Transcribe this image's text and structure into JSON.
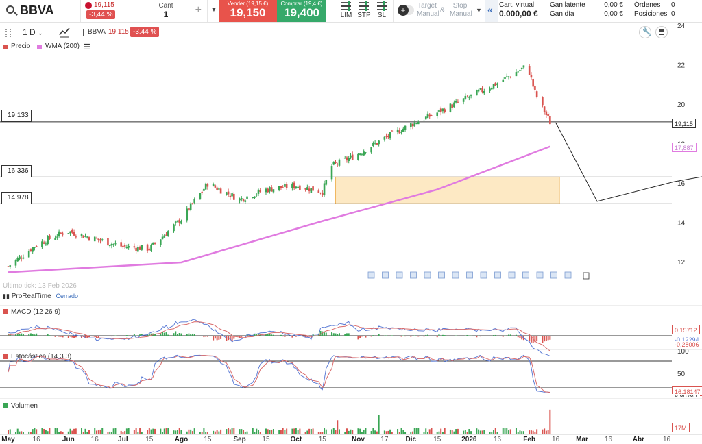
{
  "toolbar": {
    "symbol": "BBVA",
    "price": "19,115",
    "change": "-3,44 %",
    "qty_label": "Cant",
    "qty_value": "1",
    "sell_label": "Vender (19,15 €)",
    "sell_price": "19,150",
    "buy_label": "Comprar (19,4 €)",
    "buy_price": "19,400",
    "order_types": [
      "LIM",
      "STP",
      "SL"
    ],
    "target_label": "Target",
    "target_sub": "Manual",
    "amp": "&",
    "stop_label": "Stop",
    "stop_sub": "Manual",
    "collapse": "«"
  },
  "account": {
    "virtual_label": "Cart. virtual",
    "virtual_value": "0.000,00 €",
    "unrealized_label": "Gan latente",
    "unrealized_value": "0,00 €",
    "daily_label": "Gan día",
    "daily_value": "0,00 €",
    "orders_label": "Órdenes",
    "orders_value": "0",
    "positions_label": "Posiciones",
    "positions_value": "0"
  },
  "chart_header": {
    "timeframe": "1 D",
    "symbol": "BBVA",
    "price": "19,115",
    "change": "-3.44 %"
  },
  "legend": {
    "price_label": "Precio",
    "wma_label": "WMA (200)"
  },
  "levels": {
    "l1": "19.133",
    "l2": "16.336",
    "l3": "14.978"
  },
  "axis_tags": {
    "last_price": "19,115",
    "wma_value": "17,887",
    "macd_value1": "0,15712",
    "macd_value2": "-0,12294",
    "macd_value3": "-0,28006",
    "stoch_value1": "16,18147",
    "stoch_value2": "8,80780",
    "volume_value": "17M"
  },
  "status": {
    "last_tick": "Último tick: 13 Feb 2026",
    "source": "ProRealTime",
    "state": "Cerrado"
  },
  "panels": {
    "macd_label": "MACD (12 26 9)",
    "stoch_label": "Estocástico (14 3 3)",
    "volume_label": "Volumen",
    "stoch_levels": [
      "100",
      "50",
      "0"
    ]
  },
  "price_axis": {
    "ticks": [
      "24",
      "22",
      "20",
      "18",
      "16",
      "14",
      "12"
    ]
  },
  "time_axis": {
    "ticks": [
      "May",
      "16",
      "Jun",
      "16",
      "Jul",
      "15",
      "Ago",
      "15",
      "Sep",
      "15",
      "Oct",
      "15",
      "Nov",
      "17",
      "Dic",
      "15",
      "2026",
      "16",
      "Feb",
      "16",
      "Mar",
      "16",
      "Abr",
      "16"
    ]
  },
  "colors": {
    "up": "#3aa655",
    "down": "#d9534f",
    "wma": "#e07be0",
    "macd_line": "#5b7bd5",
    "signal_line": "#d96b6b",
    "zone_fill": "#fde9c4",
    "zone_border": "#f0b860"
  },
  "chart_data": {
    "type": "candlestick",
    "title": "BBVA",
    "timeframe": "1 D",
    "ylim": [
      11,
      24
    ],
    "x_range": [
      "2025-05",
      "2026-04"
    ],
    "series": [
      {
        "name": "Precio",
        "note_points": [
          {
            "x": "2025-05-01",
            "y": 11.8
          },
          {
            "x": "2025-05-16",
            "y": 12.9
          },
          {
            "x": "2025-06-01",
            "y": 13.6
          },
          {
            "x": "2025-06-16",
            "y": 13.2
          },
          {
            "x": "2025-07-01",
            "y": 12.8
          },
          {
            "x": "2025-07-15",
            "y": 12.7
          },
          {
            "x": "2025-08-01",
            "y": 14.2
          },
          {
            "x": "2025-08-15",
            "y": 16.0
          },
          {
            "x": "2025-09-01",
            "y": 15.2
          },
          {
            "x": "2025-09-15",
            "y": 15.7
          },
          {
            "x": "2025-10-01",
            "y": 15.9
          },
          {
            "x": "2025-10-15",
            "y": 15.6
          },
          {
            "x": "2025-10-20",
            "y": 16.9
          },
          {
            "x": "2025-11-01",
            "y": 17.4
          },
          {
            "x": "2025-11-17",
            "y": 18.3
          },
          {
            "x": "2025-12-01",
            "y": 19.0
          },
          {
            "x": "2025-12-15",
            "y": 19.6
          },
          {
            "x": "2026-01-01",
            "y": 20.4
          },
          {
            "x": "2026-01-16",
            "y": 21.1
          },
          {
            "x": "2026-02-01",
            "y": 22.0
          },
          {
            "x": "2026-02-05",
            "y": 20.6
          },
          {
            "x": "2026-02-13",
            "y": 19.115
          }
        ]
      },
      {
        "name": "WMA (200)",
        "points": [
          {
            "x": "2025-05-01",
            "y": 11.5
          },
          {
            "x": "2025-08-01",
            "y": 12.0
          },
          {
            "x": "2025-10-15",
            "y": 14.1
          },
          {
            "x": "2025-12-15",
            "y": 15.7
          },
          {
            "x": "2026-02-13",
            "y": 17.887
          }
        ]
      }
    ],
    "horizontal_levels": [
      19.133,
      16.336,
      14.978
    ],
    "projection": [
      {
        "x": "2026-02-16",
        "y": 19.1
      },
      {
        "x": "2026-03-10",
        "y": 15.1
      },
      {
        "x": "2026-04-20",
        "y": 16.1
      }
    ]
  }
}
